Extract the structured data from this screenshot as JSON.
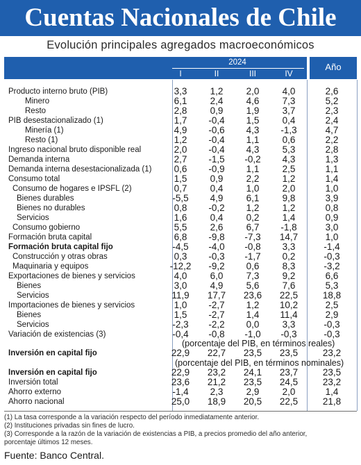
{
  "title": "Cuentas Nacionales de Chile",
  "subtitle": "Evolución principales agregados macroeconómicos",
  "header": {
    "year": "2024",
    "quarters": [
      "I",
      "II",
      "III",
      "IV"
    ],
    "annual": "Año"
  },
  "rows": [
    {
      "label": "Producto interno bruto (PIB)",
      "values": [
        "3,3",
        "1,2",
        "2,0",
        "4,0",
        "2,6"
      ]
    },
    {
      "label": "Minero",
      "values": [
        "6,1",
        "2,4",
        "4,6",
        "7,3",
        "5,2"
      ]
    },
    {
      "label": "Resto",
      "values": [
        "2,8",
        "0,9",
        "1,9",
        "3,7",
        "2,3"
      ]
    },
    {
      "label": "PIB desestacionalizado (1)",
      "values": [
        "1,7",
        "-0,4",
        "1,5",
        "0,4",
        "2,4"
      ]
    },
    {
      "label": "Minería (1)",
      "values": [
        "4,9",
        "-0,6",
        "4,3",
        "-1,3",
        "4,7"
      ]
    },
    {
      "label": "Resto (1)",
      "values": [
        "1,2",
        "-0,4",
        "1,1",
        "0,6",
        "2,2"
      ]
    },
    {
      "label": "Ingreso nacional bruto disponible real",
      "values": [
        "2,0",
        "-0,4",
        "4,3",
        "5,3",
        "2,8"
      ]
    },
    {
      "label": "Demanda interna",
      "values": [
        "2,7",
        "-1,5",
        "-0,2",
        "4,3",
        "1,3"
      ]
    },
    {
      "label": "Demanda interna desestacionalizada (1)",
      "values": [
        "0,6",
        "-0,9",
        "1,1",
        "2,5",
        "1,1"
      ]
    },
    {
      "label": "Consumo total",
      "values": [
        "1,5",
        "0,9",
        "2,2",
        "1,2",
        "1,4"
      ]
    },
    {
      "label": "Consumo de hogares e IPSFL (2)",
      "values": [
        "0,7",
        "0,4",
        "1,0",
        "2,0",
        "1,0"
      ]
    },
    {
      "label": "Bienes durables",
      "values": [
        "-5,5",
        "4,9",
        "6,1",
        "9,8",
        "3,9"
      ]
    },
    {
      "label": "Bienes no durables",
      "values": [
        "0,8",
        "-0,2",
        "1,2",
        "1,2",
        "0,8"
      ]
    },
    {
      "label": "Servicios",
      "values": [
        "1,6",
        "0,4",
        "0,2",
        "1,4",
        "0,9"
      ]
    },
    {
      "label": "Consumo gobierno",
      "values": [
        "5,5",
        "2,6",
        "6,7",
        "-1,8",
        "3,0"
      ]
    },
    {
      "label": "Formación bruta capital",
      "values": [
        "6,8",
        "-9,8",
        "-7,3",
        "14,7",
        "1,0"
      ]
    },
    {
      "label": "Formación bruta capital fijo",
      "values": [
        "-4,5",
        "-4,0",
        "-0,8",
        "3,3",
        "-1,4"
      ]
    },
    {
      "label": "Construcción y otras obras",
      "values": [
        "0,3",
        "-0,3",
        "-1,7",
        "0,2",
        "-0,3"
      ]
    },
    {
      "label": "Maquinaria y equipos",
      "values": [
        "-12,2",
        "-9,2",
        "0,6",
        "8,3",
        "-3,2"
      ]
    },
    {
      "label": "Exportaciones de bienes y servicios",
      "values": [
        "4,0",
        "6,0",
        "7,3",
        "9,2",
        "6,6"
      ]
    },
    {
      "label": "Bienes",
      "values": [
        "3,0",
        "4,9",
        "5,6",
        "7,6",
        "5,3"
      ]
    },
    {
      "label": "Servicios",
      "values": [
        "11,9",
        "17,7",
        "23,6",
        "22,5",
        "18,8"
      ]
    },
    {
      "label": "Importaciones de bienes y servicios",
      "values": [
        "1,0",
        "-2,7",
        "1,2",
        "10,2",
        "2,5"
      ]
    },
    {
      "label": "Bienes",
      "values": [
        "1,5",
        "-2,7",
        "1,4",
        "11,4",
        "2,9"
      ]
    },
    {
      "label": "Servicios",
      "values": [
        "-2,3",
        "-2,2",
        "0,0",
        "3,3",
        "-0,3"
      ]
    },
    {
      "label": "Variación de existencias (3)",
      "values": [
        "-0,4",
        "-0,8",
        "-1,0",
        "-0,3",
        "-0,3"
      ]
    },
    {
      "label": "Inversión en capital fijo",
      "values": [
        "22,9",
        "22,7",
        "23,5",
        "23,5",
        "23,2"
      ]
    },
    {
      "label": "Inversión en capital fijo",
      "values": [
        "22,9",
        "23,2",
        "24,1",
        "23,7",
        "23,5"
      ]
    },
    {
      "label": "Inversión total",
      "values": [
        "23,6",
        "21,2",
        "23,5",
        "24,5",
        "23,2"
      ]
    },
    {
      "label": "Ahorro externo",
      "values": [
        "-1,4",
        "2,3",
        "2,9",
        "2,0",
        "1,4"
      ]
    },
    {
      "label": "Ahorro nacional",
      "values": [
        "25,0",
        "18,9",
        "20,5",
        "22,5",
        "21,8"
      ]
    }
  ],
  "annotations": {
    "real": "(porcentaje del PIB, en términos reales)",
    "nominal": "(porcentaje del PIB, en términos nominales)"
  },
  "notes": [
    "(1) La tasa corresponde a la variación respecto del período inmediatamente anterior.",
    "(2) Instituciones privadas sin fines de lucro.",
    "(3) Corresponde a la razón de la variación de existencias a PIB, a precios promedio del año anterior,",
    "porcentaje últimos 12 meses."
  ],
  "source": "Fuente: Banco Central."
}
